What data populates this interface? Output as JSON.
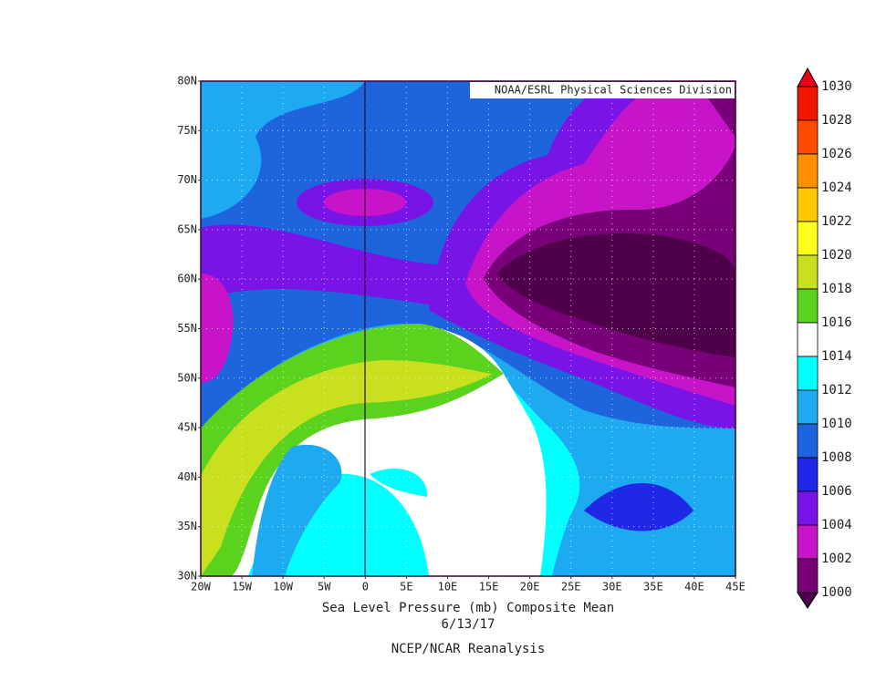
{
  "map": {
    "credit": "NOAA/ESRL Physical Sciences Division",
    "title": "Sea Level Pressure (mb) Composite Mean",
    "date": "6/13/17",
    "source": "NCEP/NCAR Reanalysis",
    "lat_ticks": [
      "80N",
      "75N",
      "70N",
      "65N",
      "60N",
      "55N",
      "50N",
      "45N",
      "40N",
      "35N",
      "30N"
    ],
    "lon_ticks": [
      "20W",
      "15W",
      "10W",
      "5W",
      "0",
      "5E",
      "10E",
      "15E",
      "20E",
      "25E",
      "30E",
      "35E",
      "40E",
      "45E"
    ],
    "colorbar": {
      "levels": [
        1030,
        1028,
        1026,
        1024,
        1022,
        1020,
        1018,
        1016,
        1014,
        1012,
        1010,
        1008,
        1006,
        1004,
        1002,
        1000
      ],
      "colors": [
        "#e8001a",
        "#f01800",
        "#ff4b00",
        "#ff9000",
        "#ffc800",
        "#ffff20",
        "#c8e01e",
        "#5ad21e",
        "#ffffff",
        "#00ffff",
        "#1eaaf0",
        "#1e64dc",
        "#1e28e6",
        "#7814e6",
        "#c814c8",
        "#780078",
        "#50004a"
      ]
    }
  }
}
